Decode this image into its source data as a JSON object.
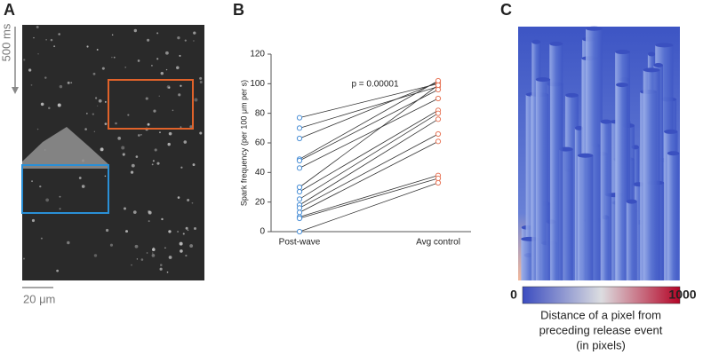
{
  "panel_labels": [
    "A",
    "B",
    "C"
  ],
  "panel_a": {
    "time_scale": "500 ms",
    "space_scale": "20 μm"
  },
  "chart_data": {
    "type": "paired",
    "ylabel": "Spark frequency (per 100 μm per s)",
    "annotation": "p = 0.00001",
    "categories": [
      "Post-wave",
      "Avg control"
    ],
    "colors": [
      "#4a8fd6",
      "#e8775a"
    ],
    "values": [
      [
        77,
        100
      ],
      [
        70,
        98
      ],
      [
        63,
        101
      ],
      [
        49,
        102
      ],
      [
        48,
        96
      ],
      [
        43,
        90
      ],
      [
        30,
        99
      ],
      [
        27,
        82
      ],
      [
        22,
        80
      ],
      [
        18,
        76
      ],
      [
        16,
        66
      ],
      [
        13,
        61
      ],
      [
        10,
        38
      ],
      [
        9,
        36
      ],
      [
        0,
        33
      ]
    ],
    "ylim": [
      0,
      120
    ],
    "yticks": [
      0,
      20,
      40,
      60,
      80,
      100,
      120
    ]
  },
  "panel_c": {
    "colorbar_min": 0,
    "colorbar_max": 1000,
    "caption": [
      "Distance of a pixel from",
      "preceding release event",
      "(in pixels)"
    ]
  }
}
